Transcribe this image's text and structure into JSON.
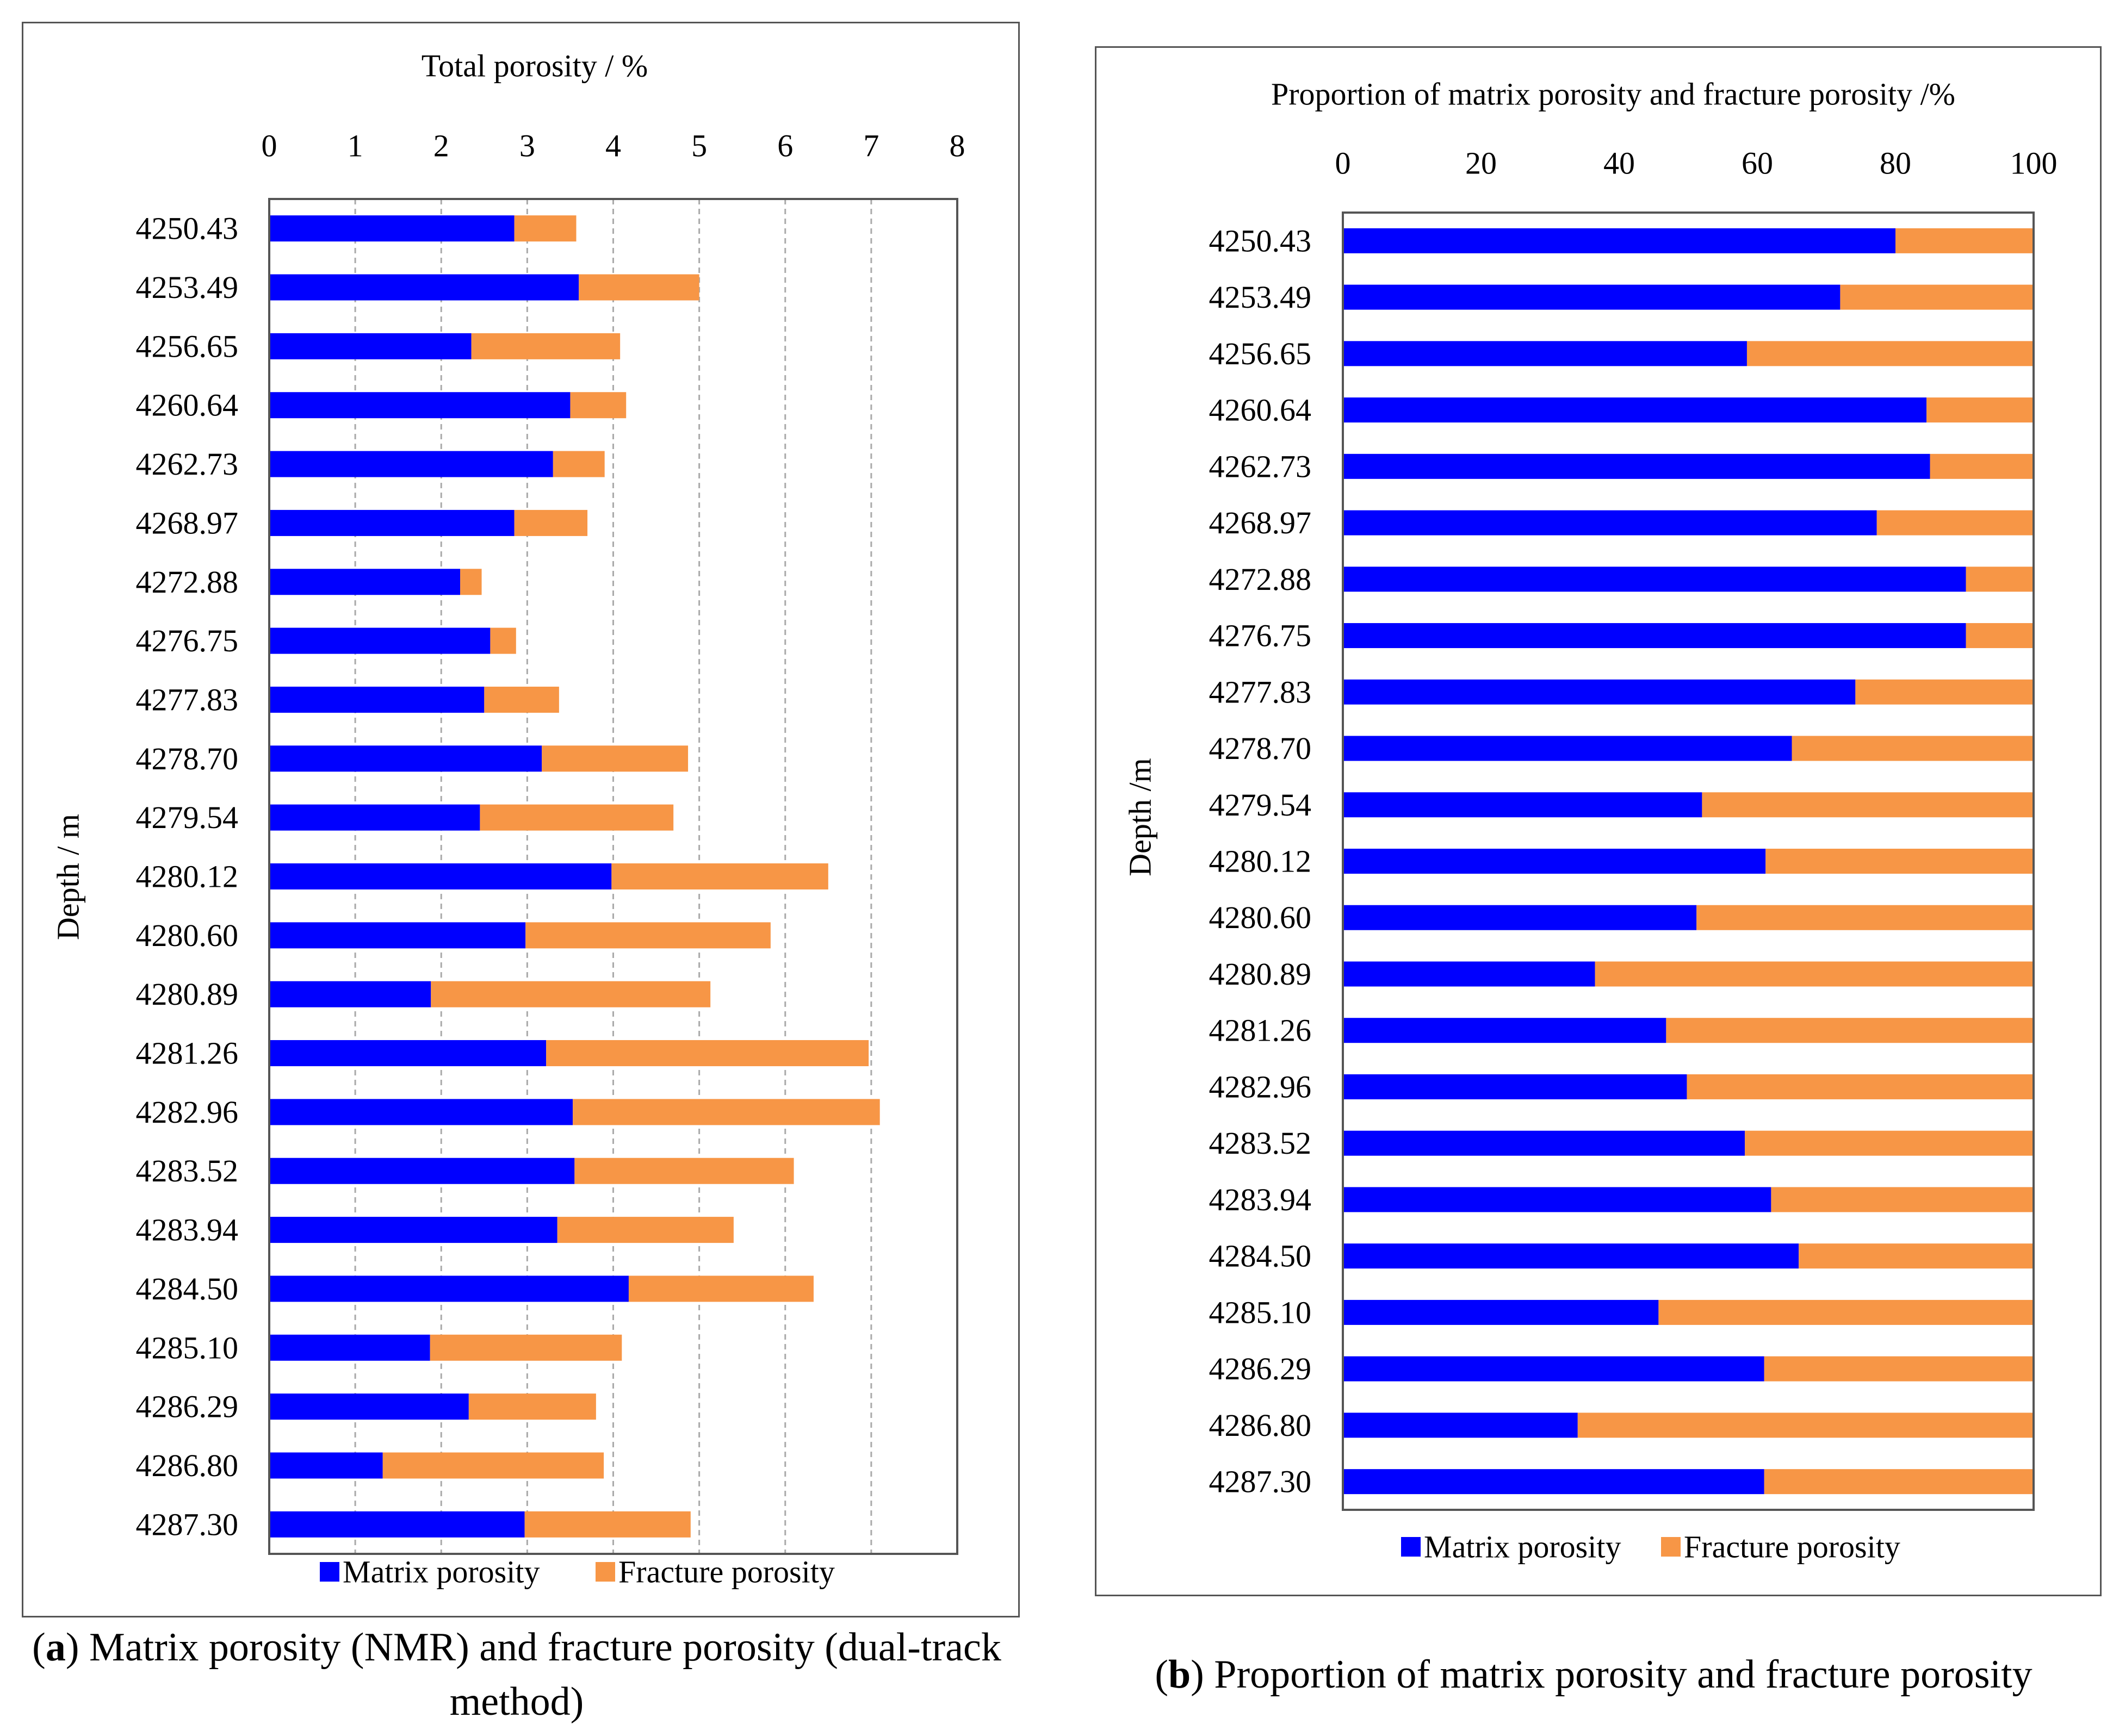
{
  "chart_data": [
    {
      "type": "bar",
      "orientation": "horizontal",
      "stacked": true,
      "title": "Total porosity / %",
      "xlabel": "Total porosity / %",
      "ylabel": "Depth / m",
      "xlim": [
        0,
        8
      ],
      "xticks": [
        "0",
        "1",
        "2",
        "3",
        "4",
        "5",
        "6",
        "7",
        "8"
      ],
      "grid": "vertical dashed",
      "legend_position": "bottom",
      "categories": [
        "4250.43",
        "4253.49",
        "4256.65",
        "4260.64",
        "4262.73",
        "4268.97",
        "4272.88",
        "4276.75",
        "4277.83",
        "4278.70",
        "4279.54",
        "4280.12",
        "4280.60",
        "4280.89",
        "4281.26",
        "4282.96",
        "4283.52",
        "4283.94",
        "4284.50",
        "4285.10",
        "4286.29",
        "4286.80",
        "4287.30"
      ],
      "series": [
        {
          "name": "Matrix porosity",
          "color": "#0000ff",
          "values": [
            2.85,
            3.6,
            2.35,
            3.5,
            3.3,
            2.85,
            2.22,
            2.57,
            2.5,
            3.17,
            2.45,
            3.98,
            2.98,
            1.88,
            3.22,
            3.53,
            3.55,
            3.35,
            4.18,
            1.87,
            2.32,
            1.32,
            2.97
          ]
        },
        {
          "name": "Fracture porosity",
          "color": "#f79646",
          "values": [
            0.72,
            1.4,
            1.73,
            0.65,
            0.6,
            0.85,
            0.25,
            0.3,
            0.87,
            1.7,
            2.25,
            2.52,
            2.85,
            3.25,
            3.75,
            3.57,
            2.55,
            2.05,
            2.15,
            2.23,
            1.48,
            2.57,
            1.93
          ]
        }
      ]
    },
    {
      "type": "bar",
      "orientation": "horizontal",
      "stacked": true,
      "title": "Proportion of matrix porosity and fracture porosity /%",
      "xlabel": "Proportion of matrix porosity and fracture porosity /%",
      "ylabel": "Depth /m",
      "xlim": [
        0,
        100
      ],
      "xticks": [
        "0",
        "20",
        "40",
        "60",
        "80",
        "100"
      ],
      "grid": "none",
      "legend_position": "bottom",
      "categories": [
        "4250.43",
        "4253.49",
        "4256.65",
        "4260.64",
        "4262.73",
        "4268.97",
        "4272.88",
        "4276.75",
        "4277.83",
        "4278.70",
        "4279.54",
        "4280.12",
        "4280.60",
        "4280.89",
        "4281.26",
        "4282.96",
        "4283.52",
        "4283.94",
        "4284.50",
        "4285.10",
        "4286.29",
        "4286.80",
        "4287.30"
      ],
      "series": [
        {
          "name": "Matrix porosity",
          "color": "#0000ff",
          "values": [
            80,
            72,
            58.5,
            84.5,
            85,
            77.3,
            90.2,
            90.2,
            74.2,
            65,
            52,
            61.2,
            51.2,
            36.5,
            46.8,
            49.8,
            58.2,
            62,
            66,
            45.7,
            61,
            34,
            61
          ]
        },
        {
          "name": "Fracture porosity",
          "color": "#f79646",
          "values": [
            20,
            28,
            41.5,
            15.5,
            15,
            22.7,
            9.8,
            9.8,
            25.8,
            35,
            48,
            38.8,
            48.8,
            63.5,
            53.2,
            50.2,
            41.8,
            38,
            34,
            54.3,
            39,
            66,
            39
          ]
        }
      ]
    }
  ],
  "captions": {
    "a": {
      "letter": "a",
      "text": "Matrix porosity (NMR) and fracture porosity (dual-track method)"
    },
    "b": {
      "letter": "b",
      "text": "Proportion of matrix porosity and fracture porosity"
    }
  }
}
